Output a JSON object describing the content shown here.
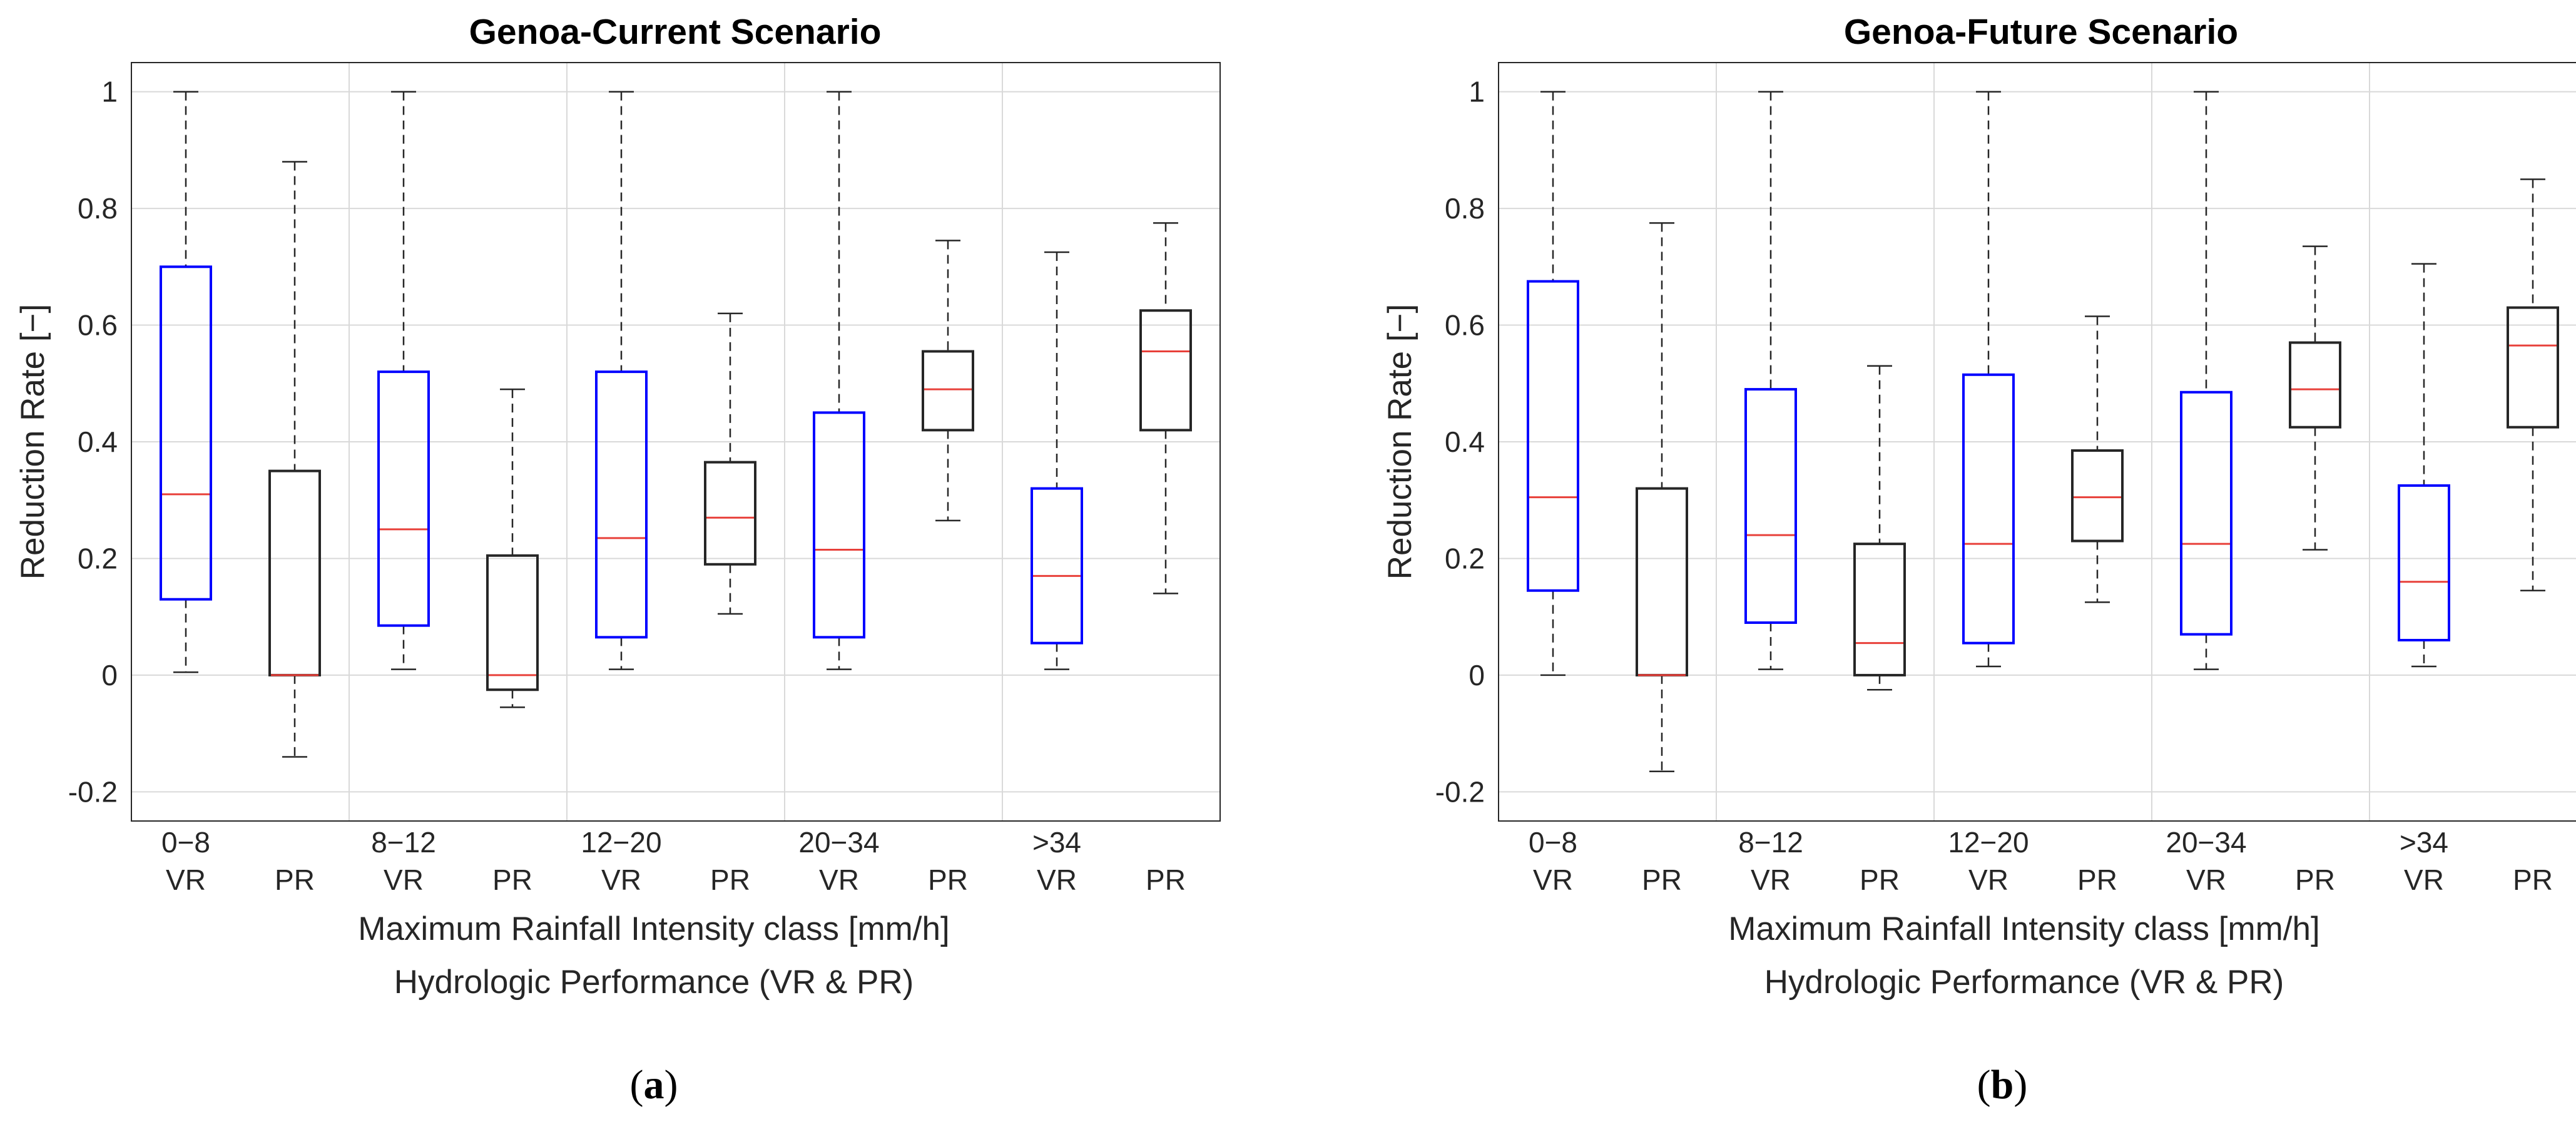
{
  "chart_data": [
    {
      "type": "boxplot",
      "panel_label": "a",
      "title": "Genoa-Current Scenario",
      "ylabel": "Reduction Rate [−]",
      "xlabel_line1": "Maximum Rainfall Intensity class [mm/h]",
      "xlabel_line2": "Hydrologic Performance (VR & PR)",
      "ylim": [
        -0.25,
        1.05
      ],
      "yticks": [
        "-0.2",
        "0",
        "0.2",
        "0.4",
        "0.6",
        "0.8",
        "1"
      ],
      "grid": true,
      "classes": [
        "0−8",
        "8−12",
        "12−20",
        "20−34",
        ">34"
      ],
      "boxes": [
        {
          "label": "VR",
          "class": "0−8",
          "color": "#0000ff",
          "whisker_low": 0.005,
          "q1": 0.13,
          "median": 0.31,
          "q3": 0.7,
          "whisker_high": 1.0
        },
        {
          "label": "PR",
          "class": "0−8",
          "color": "#262626",
          "whisker_low": -0.14,
          "q1": 0.0,
          "median": 0.0,
          "q3": 0.35,
          "whisker_high": 0.88
        },
        {
          "label": "VR",
          "class": "8−12",
          "color": "#0000ff",
          "whisker_low": 0.01,
          "q1": 0.085,
          "median": 0.25,
          "q3": 0.52,
          "whisker_high": 1.0
        },
        {
          "label": "PR",
          "class": "8−12",
          "color": "#262626",
          "whisker_low": -0.055,
          "q1": -0.025,
          "median": 0.0,
          "q3": 0.205,
          "whisker_high": 0.49
        },
        {
          "label": "VR",
          "class": "12−20",
          "color": "#0000ff",
          "whisker_low": 0.01,
          "q1": 0.065,
          "median": 0.235,
          "q3": 0.52,
          "whisker_high": 1.0
        },
        {
          "label": "PR",
          "class": "12−20",
          "color": "#262626",
          "whisker_low": 0.105,
          "q1": 0.19,
          "median": 0.27,
          "q3": 0.365,
          "whisker_high": 0.62
        },
        {
          "label": "VR",
          "class": "20−34",
          "color": "#0000ff",
          "whisker_low": 0.01,
          "q1": 0.065,
          "median": 0.215,
          "q3": 0.45,
          "whisker_high": 1.0
        },
        {
          "label": "PR",
          "class": "20−34",
          "color": "#262626",
          "whisker_low": 0.265,
          "q1": 0.42,
          "median": 0.49,
          "q3": 0.555,
          "whisker_high": 0.745
        },
        {
          "label": "VR",
          "class": ">34",
          "color": "#0000ff",
          "whisker_low": 0.01,
          "q1": 0.055,
          "median": 0.17,
          "q3": 0.32,
          "whisker_high": 0.725
        },
        {
          "label": "PR",
          "class": ">34",
          "color": "#262626",
          "whisker_low": 0.14,
          "q1": 0.42,
          "median": 0.555,
          "q3": 0.625,
          "whisker_high": 0.775
        }
      ]
    },
    {
      "type": "boxplot",
      "panel_label": "b",
      "title": "Genoa-Future Scenario",
      "ylabel": "Reduction Rate [−]",
      "xlabel_line1": "Maximum Rainfall Intensity class [mm/h]",
      "xlabel_line2": "Hydrologic Performance (VR & PR)",
      "ylim": [
        -0.25,
        1.05
      ],
      "yticks": [
        "-0.2",
        "0",
        "0.2",
        "0.4",
        "0.6",
        "0.8",
        "1"
      ],
      "grid": true,
      "classes": [
        "0−8",
        "8−12",
        "12−20",
        "20−34",
        ">34"
      ],
      "boxes": [
        {
          "label": "VR",
          "class": "0−8",
          "color": "#0000ff",
          "whisker_low": 0.0,
          "q1": 0.145,
          "median": 0.305,
          "q3": 0.675,
          "whisker_high": 1.0
        },
        {
          "label": "PR",
          "class": "0−8",
          "color": "#262626",
          "whisker_low": -0.165,
          "q1": 0.0,
          "median": 0.0,
          "q3": 0.32,
          "whisker_high": 0.775
        },
        {
          "label": "VR",
          "class": "8−12",
          "color": "#0000ff",
          "whisker_low": 0.01,
          "q1": 0.09,
          "median": 0.24,
          "q3": 0.49,
          "whisker_high": 1.0
        },
        {
          "label": "PR",
          "class": "8−12",
          "color": "#262626",
          "whisker_low": -0.025,
          "q1": 0.0,
          "median": 0.055,
          "q3": 0.225,
          "whisker_high": 0.53
        },
        {
          "label": "VR",
          "class": "12−20",
          "color": "#0000ff",
          "whisker_low": 0.015,
          "q1": 0.055,
          "median": 0.225,
          "q3": 0.515,
          "whisker_high": 1.0
        },
        {
          "label": "PR",
          "class": "12−20",
          "color": "#262626",
          "whisker_low": 0.125,
          "q1": 0.23,
          "median": 0.305,
          "q3": 0.385,
          "whisker_high": 0.615
        },
        {
          "label": "VR",
          "class": "20−34",
          "color": "#0000ff",
          "whisker_low": 0.01,
          "q1": 0.07,
          "median": 0.225,
          "q3": 0.485,
          "whisker_high": 1.0
        },
        {
          "label": "PR",
          "class": "20−34",
          "color": "#262626",
          "whisker_low": 0.215,
          "q1": 0.425,
          "median": 0.49,
          "q3": 0.57,
          "whisker_high": 0.735
        },
        {
          "label": "VR",
          "class": ">34",
          "color": "#0000ff",
          "whisker_low": 0.015,
          "q1": 0.06,
          "median": 0.16,
          "q3": 0.325,
          "whisker_high": 0.705
        },
        {
          "label": "PR",
          "class": ">34",
          "color": "#262626",
          "whisker_low": 0.145,
          "q1": 0.425,
          "median": 0.565,
          "q3": 0.63,
          "whisker_high": 0.85
        }
      ]
    }
  ],
  "colors": {
    "median": "#e8403a",
    "grid": "#d9d9d9",
    "axis": "#262626"
  }
}
